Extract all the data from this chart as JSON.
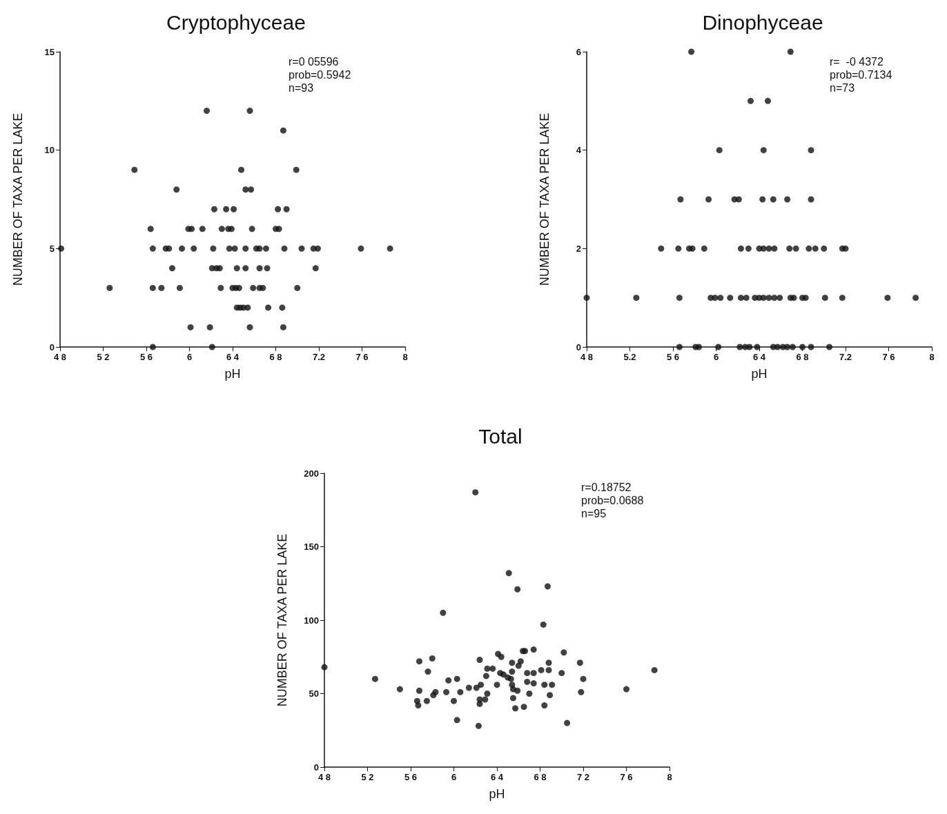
{
  "chart_data": [
    {
      "type": "scatter",
      "title": "Cryptophyceae",
      "xlabel": "pH",
      "ylabel": "NUMBER OF TAXA PER LAKE",
      "color": "#111111",
      "marker": "circle",
      "annotations": [
        "r=0 05596",
        "prob=0.5942",
        "n=93"
      ],
      "xlim": [
        4.8,
        8
      ],
      "xticks": [
        {
          "value": 4.8,
          "label": "4 8"
        },
        {
          "value": 5.2,
          "label": "5 2"
        },
        {
          "value": 5.6,
          "label": "5 6"
        },
        6,
        {
          "value": 6.4,
          "label": "6 4"
        },
        {
          "value": 6.8,
          "label": "6 8"
        },
        7.2,
        {
          "value": 7.6,
          "label": "7 6"
        },
        8
      ],
      "ylim": [
        0,
        15
      ],
      "yticks": [
        0,
        5,
        10,
        15
      ],
      "x": [
        6.16,
        6.56,
        6.87,
        5.49,
        6.48,
        6.99,
        5.88,
        6.52,
        6.57,
        6.23,
        6.34,
        6.41,
        6.82,
        6.9,
        5.64,
        5.99,
        6.02,
        6.12,
        6.3,
        6.36,
        6.39,
        6.58,
        6.8,
        6.83,
        4.81,
        5.66,
        5.78,
        5.81,
        5.93,
        6.04,
        6.22,
        6.37,
        6.42,
        6.52,
        6.62,
        6.65,
        6.71,
        6.88,
        7.04,
        7.15,
        7.19,
        7.59,
        7.86,
        5.84,
        6.21,
        6.25,
        6.28,
        6.44,
        6.52,
        6.65,
        6.72,
        7.17,
        5.26,
        5.66,
        5.74,
        5.91,
        6.29,
        6.4,
        6.43,
        6.46,
        6.59,
        6.65,
        6.68,
        7,
        6.44,
        6.47,
        6.5,
        6.54,
        6.73,
        6.86,
        6.01,
        6.19,
        6.56,
        6.87,
        5.66,
        6.21
      ],
      "values": [
        12,
        12,
        11,
        9,
        9,
        9,
        8,
        8,
        8,
        7,
        7,
        7,
        7,
        7,
        6,
        6,
        6,
        6,
        6,
        6,
        6,
        6,
        6,
        6,
        5,
        5,
        5,
        5,
        5,
        5,
        5,
        5,
        5,
        5,
        5,
        5,
        5,
        5,
        5,
        5,
        5,
        5,
        5,
        4,
        4,
        4,
        4,
        4,
        4,
        4,
        4,
        4,
        3,
        3,
        3,
        3,
        3,
        3,
        3,
        3,
        3,
        3,
        3,
        3,
        2,
        2,
        2,
        2,
        2,
        2,
        1,
        1,
        1,
        1,
        0,
        0
      ]
    },
    {
      "type": "scatter",
      "title": "Dinophyceae",
      "xlabel": "pH",
      "ylabel": "NUMBER OF TAXA PER LAKE",
      "color": "#111111",
      "marker": "circle",
      "annotations": [
        "r=  -0 4372",
        "prob=0.7134",
        "n=73"
      ],
      "xlim": [
        4.8,
        8
      ],
      "xticks": [
        {
          "value": 4.8,
          "label": "4 8"
        },
        {
          "value": 5.2,
          "label": "5.2"
        },
        {
          "value": 5.6,
          "label": "5 6"
        },
        6,
        {
          "value": 6.4,
          "label": "6 4"
        },
        {
          "value": 6.8,
          "label": "6 8"
        },
        7.2,
        {
          "value": 7.6,
          "label": "7 6"
        },
        8
      ],
      "ylim": [
        0,
        6
      ],
      "yticks": [
        0,
        2,
        4,
        6
      ],
      "x": [
        5.77,
        6.69,
        6.32,
        6.48,
        6.03,
        6.44,
        6.88,
        5.67,
        5.93,
        6.17,
        6.21,
        6.43,
        6.53,
        6.66,
        6.88,
        5.49,
        5.65,
        5.75,
        5.78,
        5.89,
        6.23,
        6.3,
        6.4,
        6.44,
        6.49,
        6.54,
        6.68,
        6.74,
        6.86,
        6.92,
        7,
        7.17,
        7.2,
        4.8,
        5.26,
        5.66,
        5.95,
        5.99,
        6.04,
        6.13,
        6.23,
        6.28,
        6.36,
        6.4,
        6.44,
        6.49,
        6.54,
        6.59,
        6.69,
        6.72,
        6.8,
        6.83,
        7.01,
        7.17,
        7.59,
        7.85,
        5.66,
        5.81,
        5.84,
        6.02,
        6.22,
        6.27,
        6.31,
        6.38,
        6.53,
        6.57,
        6.62,
        6.66,
        6.71,
        6.8,
        6.88,
        7.05
      ],
      "values": [
        6,
        6,
        5,
        5,
        4,
        4,
        4,
        3,
        3,
        3,
        3,
        3,
        3,
        3,
        3,
        2,
        2,
        2,
        2,
        2,
        2,
        2,
        2,
        2,
        2,
        2,
        2,
        2,
        2,
        2,
        2,
        2,
        2,
        1,
        1,
        1,
        1,
        1,
        1,
        1,
        1,
        1,
        1,
        1,
        1,
        1,
        1,
        1,
        1,
        1,
        1,
        1,
        1,
        1,
        1,
        1,
        0,
        0,
        0,
        0,
        0,
        0,
        0,
        0,
        0,
        0,
        0,
        0,
        0,
        0,
        0,
        0
      ]
    },
    {
      "type": "scatter",
      "title": "Total",
      "xlabel": "pH",
      "ylabel": "NUMBER OF TAXA PER LAKE",
      "color": "#111111",
      "marker": "circle",
      "annotations": [
        "r=0.18752",
        "prob=0.0688",
        "n=95"
      ],
      "xlim": [
        4.8,
        8
      ],
      "xticks": [
        {
          "value": 4.8,
          "label": "4 8"
        },
        {
          "value": 5.2,
          "label": "5 2"
        },
        {
          "value": 5.6,
          "label": "5 6"
        },
        6,
        {
          "value": 6.4,
          "label": "6 4"
        },
        {
          "value": 6.8,
          "label": "6 8"
        },
        {
          "value": 7.2,
          "label": "7 2"
        },
        {
          "value": 7.6,
          "label": "7 6"
        },
        8
      ],
      "ylim": [
        0,
        200
      ],
      "yticks": [
        0,
        50,
        100,
        150,
        200
      ],
      "x": [
        6.2,
        6.51,
        6.59,
        6.87,
        5.9,
        6.83,
        7.02,
        6.74,
        6.64,
        6.66,
        6.41,
        6.44,
        5.8,
        5.68,
        6.24,
        7.17,
        6.54,
        6.62,
        6.6,
        6.88,
        4.8,
        7.86,
        6.31,
        6.36,
        6.81,
        6.88,
        7,
        6.68,
        6.74,
        6.54,
        6.43,
        6.46,
        6.5,
        6.53,
        5.76,
        5.27,
        7.2,
        6.3,
        6.03,
        5.95,
        6.4,
        6.54,
        6.55,
        6.68,
        6.74,
        6.84,
        6.91,
        6.25,
        6.21,
        6.14,
        5.5,
        5.68,
        5.93,
        6.06,
        5.83,
        5.81,
        6.59,
        7.18,
        6.7,
        6.89,
        6.31,
        6.29,
        6.24,
        6.24,
        6.55,
        5.66,
        5.67,
        5.75,
        6,
        6.65,
        6.57,
        6.84,
        7.6,
        7.05,
        6.03,
        6.23
      ],
      "values": [
        187,
        132,
        121,
        123,
        105,
        97,
        78,
        80,
        79,
        79,
        77,
        75,
        74,
        72,
        73,
        71,
        71,
        72,
        69,
        71,
        68,
        66,
        67,
        67,
        66,
        66,
        64,
        64,
        64,
        65,
        64,
        63,
        61,
        60,
        65,
        60,
        60,
        62,
        60,
        59,
        56,
        56,
        53,
        58,
        57,
        56,
        56,
        56,
        54,
        54,
        53,
        52,
        51,
        51,
        51,
        49,
        52,
        51,
        50,
        49,
        50,
        46,
        46,
        43,
        47,
        45,
        42,
        45,
        45,
        41,
        40,
        42,
        53,
        30,
        32,
        28
      ]
    }
  ]
}
